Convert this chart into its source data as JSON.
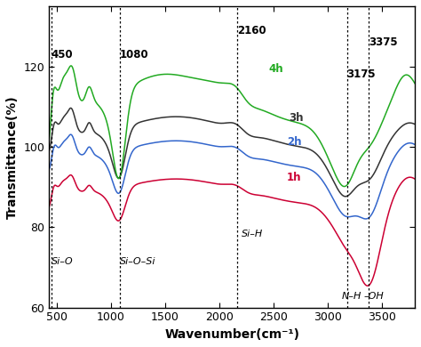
{
  "xlabel": "Wavenumber(cm⁻¹)",
  "ylabel": "Transmittance(%)",
  "xlim": [
    430,
    3800
  ],
  "ylim": [
    60,
    135
  ],
  "yticks": [
    60,
    80,
    100,
    120
  ],
  "xticks": [
    500,
    1000,
    1500,
    2000,
    2500,
    3000,
    3500
  ],
  "vlines": [
    450,
    1080,
    2160,
    3175,
    3375
  ],
  "series_colors": [
    "#cc0033",
    "#3366cc",
    "#333333",
    "#22aa22"
  ],
  "background_color": "#ffffff"
}
